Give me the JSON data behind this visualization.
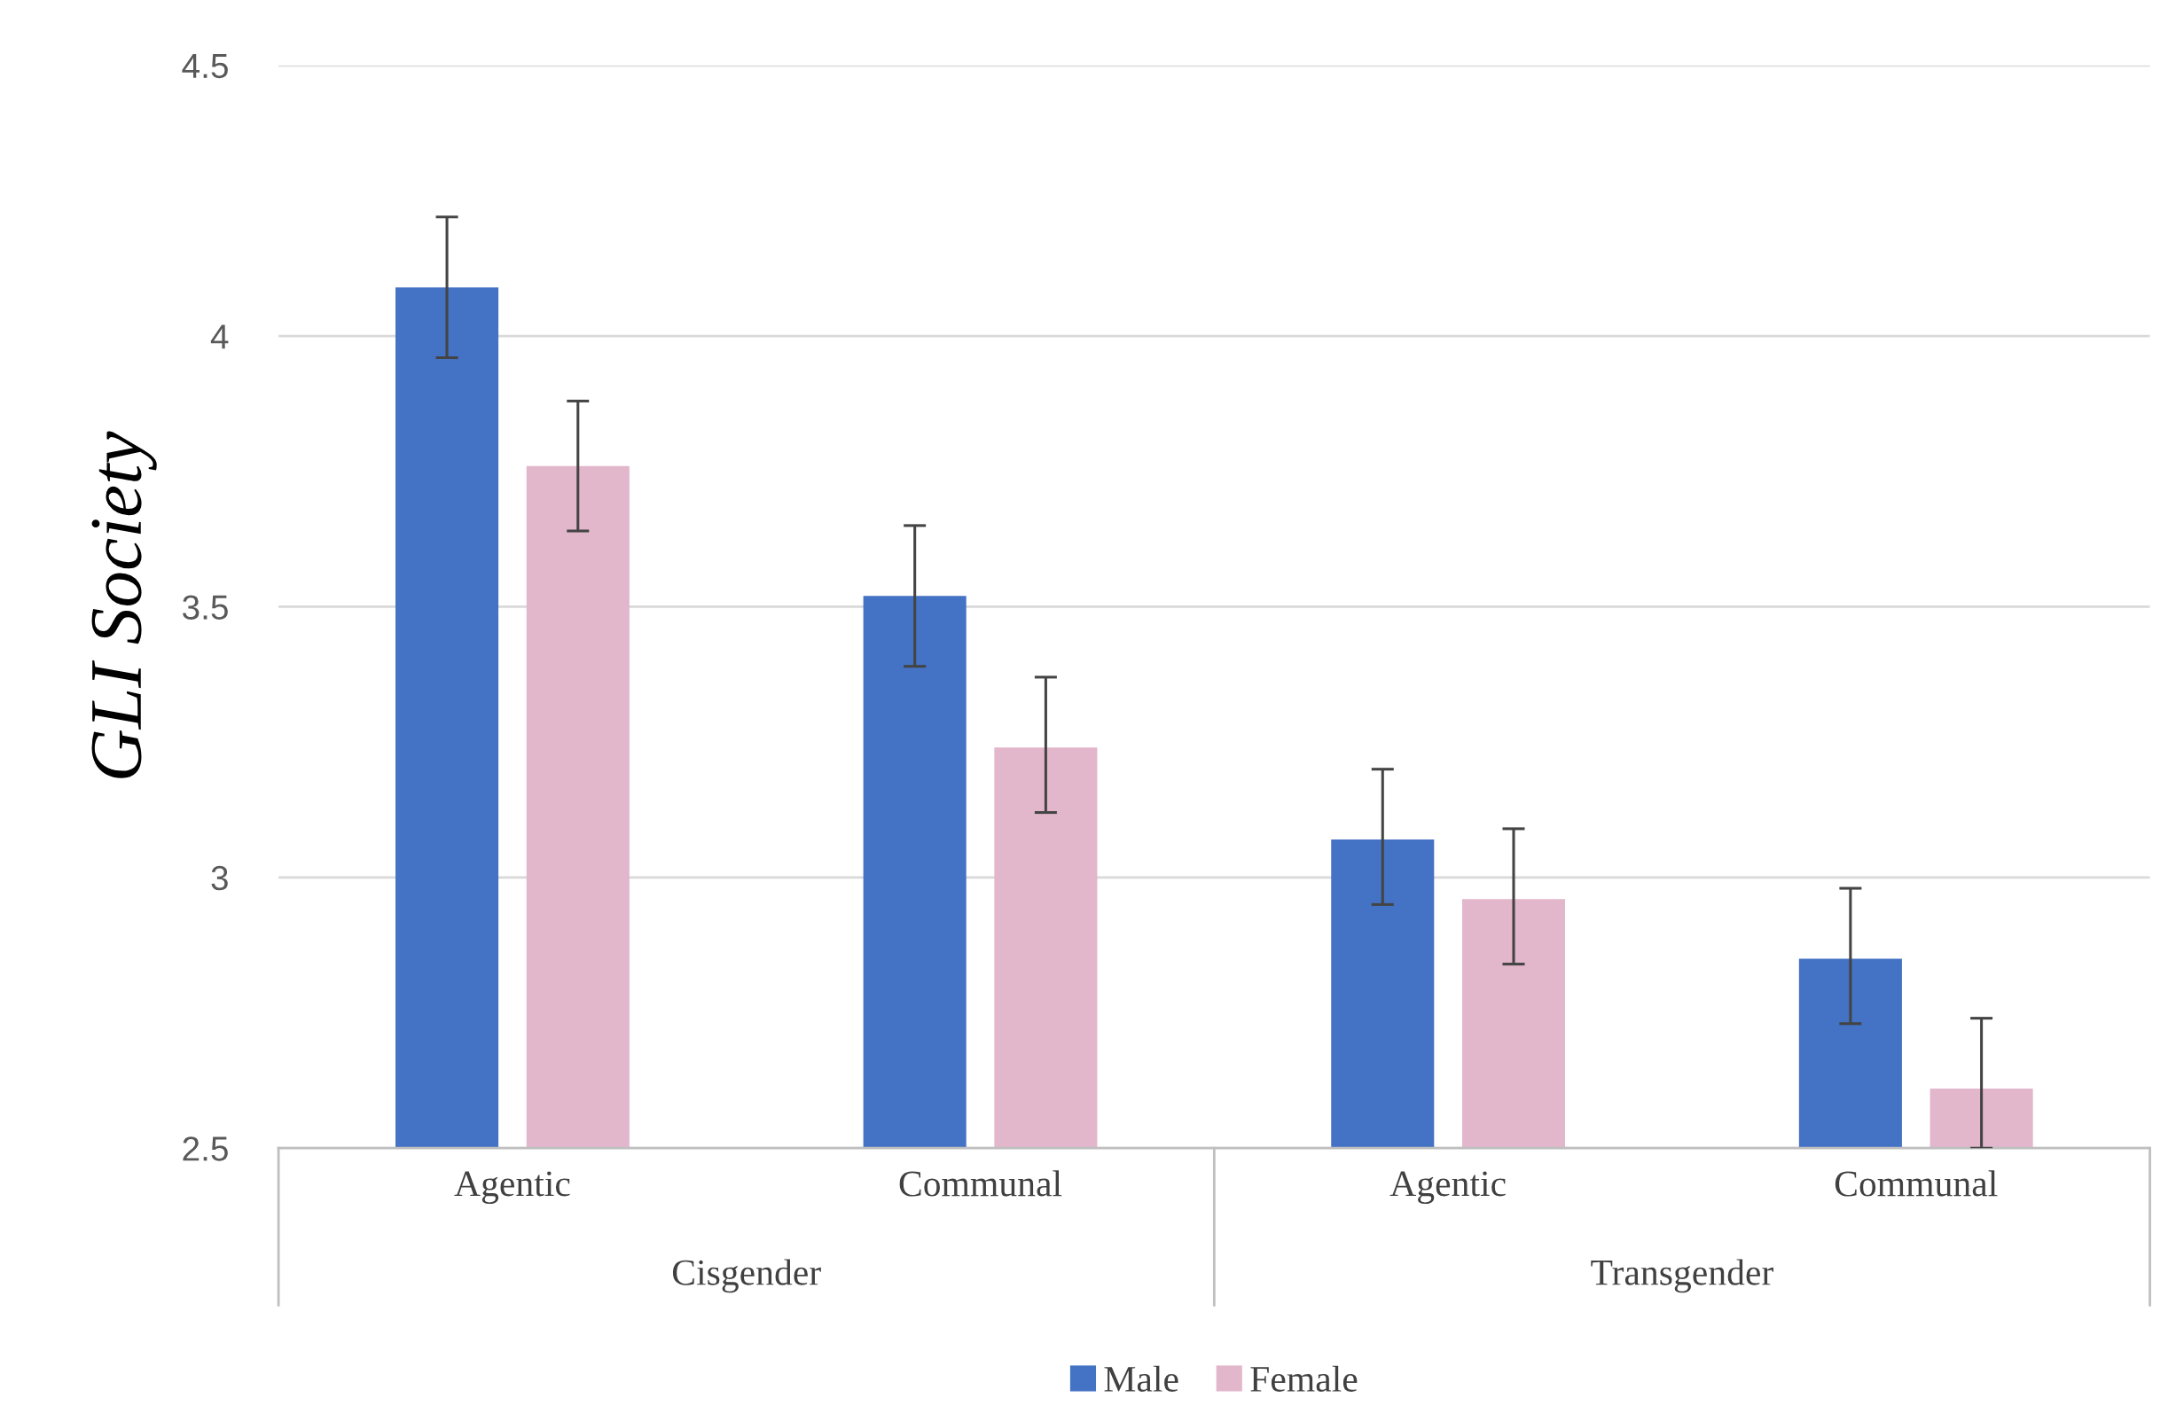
{
  "chart_data": {
    "type": "bar",
    "ylabel": "GLI Society",
    "categories": [
      "Agentic",
      "Communal",
      "Agentic",
      "Communal"
    ],
    "annotations": [
      "Cisgender",
      "Transgender"
    ],
    "series": [
      {
        "name": "Male",
        "color": "#4472c4",
        "values": [
          4.09,
          3.52,
          3.07,
          2.85
        ],
        "errors": [
          [
            3.96,
            4.22
          ],
          [
            3.39,
            3.65
          ],
          [
            2.95,
            3.2
          ],
          [
            2.73,
            2.98
          ]
        ]
      },
      {
        "name": "Female",
        "color": "#e2b6cb",
        "values": [
          3.76,
          3.24,
          2.96,
          2.61
        ],
        "errors": [
          [
            3.64,
            3.88
          ],
          [
            3.12,
            3.37
          ],
          [
            2.84,
            3.09
          ],
          [
            2.5,
            2.74
          ]
        ]
      }
    ],
    "ylim": [
      2.5,
      4.5
    ],
    "yticks": [
      2.5,
      3,
      3.5,
      4,
      4.5
    ],
    "grid": "y",
    "legend": "bottom"
  }
}
